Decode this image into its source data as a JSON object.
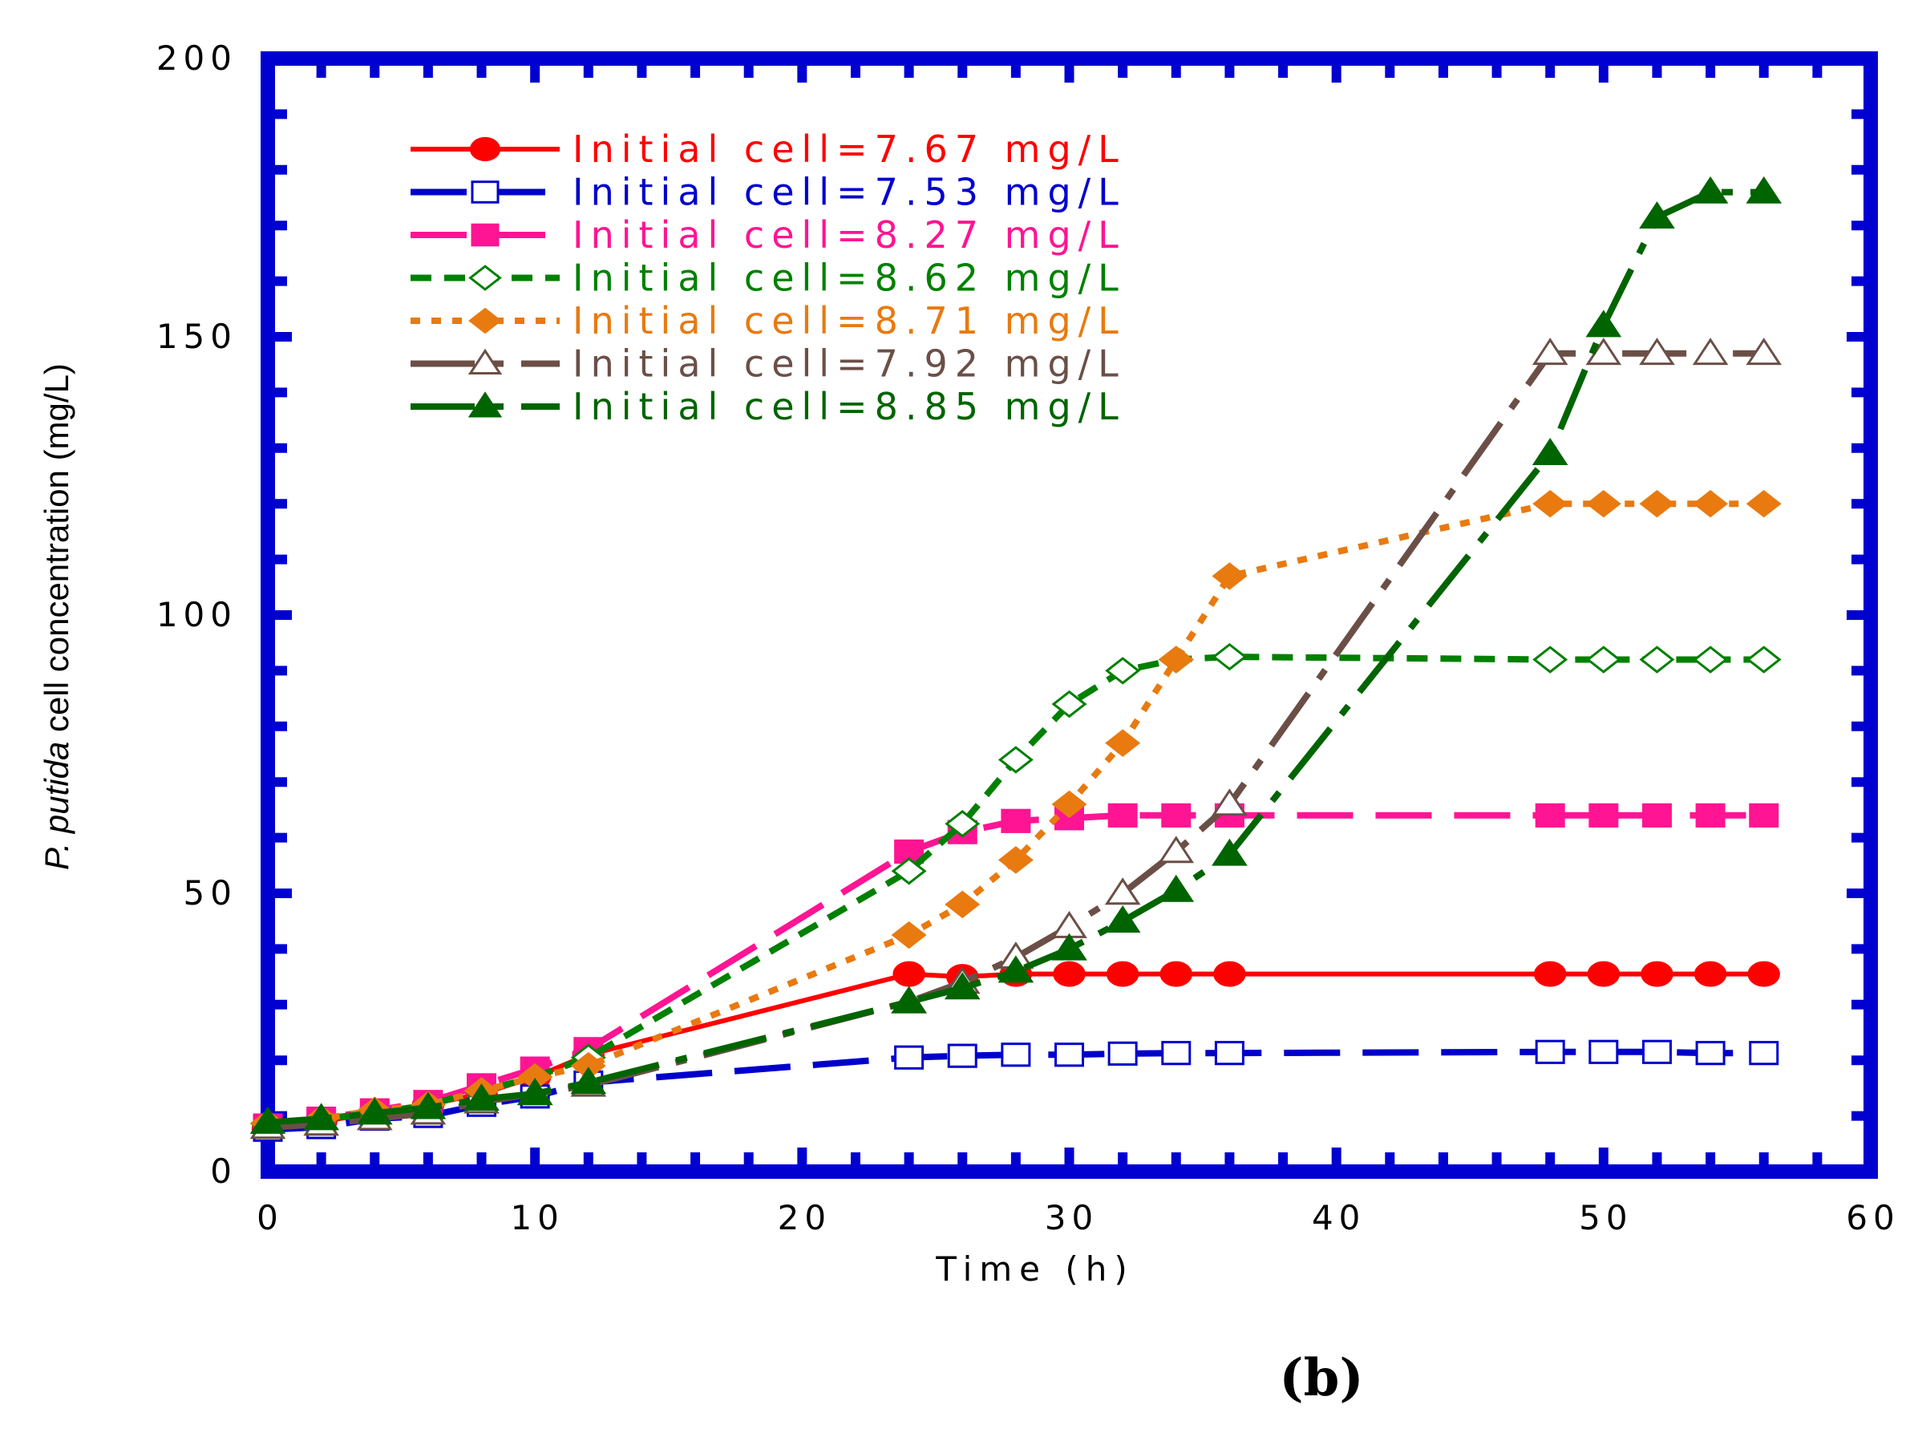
{
  "chart_data": {
    "type": "line",
    "title": "",
    "xlabel": "Time (h)",
    "ylabel_italic": "P. putida",
    "ylabel_rest": " cell concentration (mg/L)",
    "xlim": [
      0,
      60
    ],
    "ylim": [
      0,
      200
    ],
    "x_ticks": [
      0,
      10,
      20,
      30,
      40,
      50,
      60
    ],
    "y_ticks": [
      0,
      50,
      100,
      150,
      200
    ],
    "x_tick_labels": [
      "0",
      "10",
      "20",
      "30",
      "40",
      "50",
      "60"
    ],
    "y_tick_labels": [
      "0",
      "50",
      "100",
      "150",
      "200"
    ],
    "grid": false,
    "legend_position": "top-left",
    "frame_color": "#0000d0",
    "panel_label": "(b)",
    "series": [
      {
        "name": "Initial cell=7.67 mg/L",
        "color": "#ff0000",
        "marker": "circle",
        "filled": true,
        "dash": "solid",
        "x": [
          0,
          2,
          4,
          6,
          8,
          10,
          12,
          24,
          26,
          28,
          30,
          32,
          34,
          36,
          48,
          50,
          52,
          54,
          56
        ],
        "y": [
          7.67,
          9,
          10.5,
          12,
          14,
          17,
          21,
          35.5,
          35,
          35.5,
          35.5,
          35.5,
          35.5,
          35.5,
          35.5,
          35.5,
          35.5,
          35.5,
          35.5
        ]
      },
      {
        "name": "Initial cell=7.53 mg/L",
        "color": "#0000cc",
        "marker": "square",
        "filled": false,
        "dash": "longdash",
        "x": [
          0,
          2,
          4,
          6,
          8,
          10,
          12,
          24,
          26,
          28,
          30,
          32,
          34,
          36,
          48,
          50,
          52,
          54,
          56
        ],
        "y": [
          7.53,
          8,
          9.5,
          10,
          12,
          13.5,
          16,
          20.5,
          20.8,
          21,
          21,
          21.2,
          21.3,
          21.3,
          21.5,
          21.5,
          21.5,
          21.3,
          21.3
        ]
      },
      {
        "name": "Initial cell=8.27 mg/L",
        "color": "#ff1493",
        "marker": "square",
        "filled": true,
        "dash": "longdash",
        "x": [
          0,
          2,
          4,
          6,
          8,
          10,
          12,
          24,
          26,
          28,
          30,
          32,
          34,
          36,
          48,
          50,
          52,
          54,
          56
        ],
        "y": [
          8.27,
          9.5,
          11,
          12.5,
          15.5,
          18.5,
          22,
          57.5,
          61,
          63,
          63.5,
          64,
          64,
          64,
          64,
          64,
          64,
          64,
          64
        ]
      },
      {
        "name": "Initial cell=8.62 mg/L",
        "color": "#008000",
        "marker": "diamond",
        "filled": false,
        "dash": "dashed",
        "x": [
          0,
          2,
          4,
          6,
          8,
          10,
          12,
          24,
          26,
          28,
          30,
          32,
          34,
          36,
          48,
          50,
          52,
          54,
          56
        ],
        "y": [
          8.62,
          9.5,
          10.5,
          12,
          14.5,
          17,
          20.5,
          54,
          62.5,
          74,
          84,
          90,
          92,
          92.5,
          92,
          92,
          92,
          92,
          92
        ]
      },
      {
        "name": "Initial cell=8.71 mg/L",
        "color": "#e87a10",
        "marker": "diamond",
        "filled": true,
        "dash": "dotted",
        "x": [
          0,
          2,
          4,
          6,
          8,
          10,
          12,
          24,
          26,
          28,
          30,
          32,
          34,
          36,
          48,
          50,
          52,
          54,
          56
        ],
        "y": [
          8.71,
          9.5,
          11,
          12,
          14.5,
          17,
          19,
          42.5,
          48,
          56,
          66,
          77,
          92,
          107,
          120,
          120,
          120,
          120,
          120
        ]
      },
      {
        "name": "Initial cell=7.92 mg/L",
        "color": "#6b4f47",
        "marker": "triangle",
        "filled": false,
        "dash": "dashdot",
        "x": [
          0,
          2,
          4,
          6,
          8,
          10,
          12,
          24,
          26,
          28,
          30,
          32,
          34,
          36,
          48,
          50,
          52,
          54,
          56
        ],
        "y": [
          7.92,
          8.5,
          9.5,
          10.5,
          12.5,
          14,
          15.5,
          30.5,
          34,
          38.5,
          44,
          50,
          57.5,
          66,
          147,
          147,
          147,
          147,
          147
        ]
      },
      {
        "name": "Initial cell=8.85 mg/L",
        "color": "#006400",
        "marker": "triangle",
        "filled": true,
        "dash": "dashdot",
        "x": [
          0,
          2,
          4,
          6,
          8,
          10,
          12,
          24,
          26,
          28,
          30,
          32,
          34,
          36,
          48,
          50,
          52,
          54,
          56
        ],
        "y": [
          8.85,
          9.5,
          10.5,
          11.5,
          13,
          14,
          16,
          30.5,
          33,
          36,
          40,
          45,
          50.5,
          57,
          129,
          152,
          171.5,
          176,
          176
        ]
      }
    ]
  }
}
